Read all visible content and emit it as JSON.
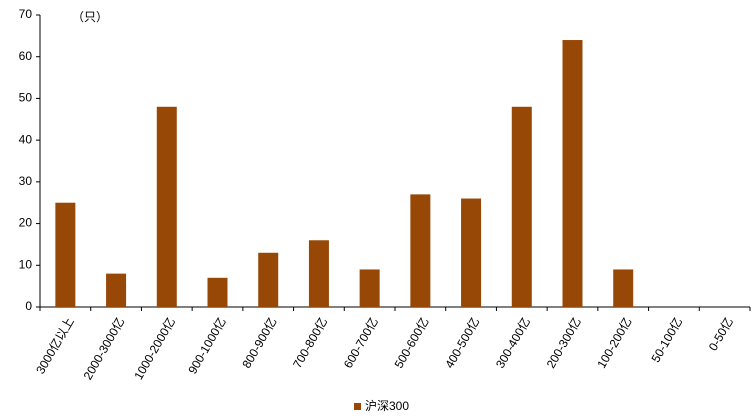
{
  "chart_data": {
    "type": "bar",
    "unit_label": "（只）",
    "categories": [
      "3000亿以上",
      "2000-3000亿",
      "1000-2000亿",
      "900-1000亿",
      "800-900亿",
      "700-800亿",
      "600-700亿",
      "500-600亿",
      "400-500亿",
      "300-400亿",
      "200-300亿",
      "100-200亿",
      "50-100亿",
      "0-50亿"
    ],
    "series": [
      {
        "name": "沪深300",
        "color": "#974807",
        "values": [
          25,
          8,
          48,
          7,
          13,
          16,
          9,
          27,
          26,
          48,
          64,
          9,
          0,
          0
        ]
      }
    ],
    "ylim": [
      0,
      70
    ],
    "yticks": [
      0,
      10,
      20,
      30,
      40,
      50,
      60,
      70
    ],
    "grid": false,
    "legend": "bottom"
  }
}
